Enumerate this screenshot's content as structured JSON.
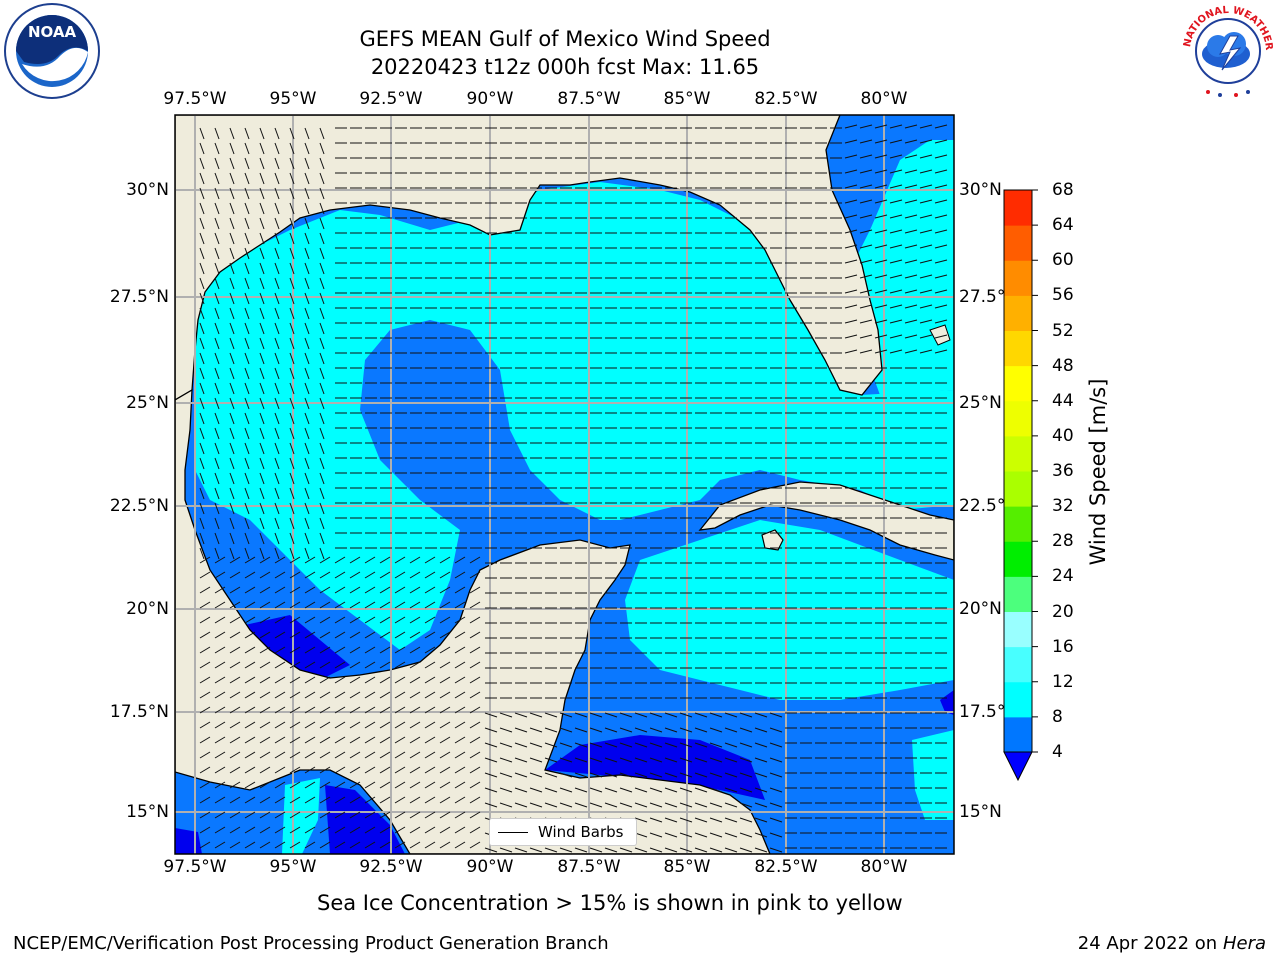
{
  "title": {
    "line1": "GEFS MEAN Gulf of Mexico Wind Speed",
    "line2": "20220423 t12z 000h fcst   Max: 11.65"
  },
  "map": {
    "lon_ticks": [
      "97.5°W",
      "95°W",
      "92.5°W",
      "90°W",
      "87.5°W",
      "85°W",
      "82.5°W",
      "80°W"
    ],
    "lon_values": [
      -97.5,
      -95,
      -92.5,
      -90,
      -87.5,
      -85,
      -82.5,
      -80
    ],
    "lat_ticks": [
      "30°N",
      "27.5°N",
      "25°N",
      "22.5°N",
      "20°N",
      "17.5°N",
      "15°N"
    ],
    "lat_values": [
      30,
      27.5,
      25,
      22.5,
      20,
      17.5,
      15
    ],
    "extent": {
      "lon_min": -98,
      "lon_max": -78,
      "lat_min": 14,
      "lat_max": 31.5
    },
    "legend_label": "Wind Barbs",
    "colors": {
      "land": "#efecdc",
      "ocean_4_8": "#0a78ff",
      "ocean_8_12": "#00ffff",
      "ocean_0_4": "#0000ee",
      "grid": "#b0b0b0"
    }
  },
  "colorbar": {
    "label": "Wind Speed [m/s]",
    "levels": [
      "4",
      "8",
      "12",
      "16",
      "20",
      "24",
      "28",
      "32",
      "36",
      "40",
      "44",
      "48",
      "52",
      "56",
      "60",
      "64",
      "68"
    ],
    "colors": [
      "#0077ff",
      "#00ffff",
      "#48ffff",
      "#99ffff",
      "#4cff7d",
      "#00ee00",
      "#55ee00",
      "#aaff00",
      "#ccff00",
      "#eeff00",
      "#ffff00",
      "#ffd700",
      "#ffb000",
      "#ff8c00",
      "#ff5d00",
      "#ff2c00"
    ],
    "extend_color": "#0000ff"
  },
  "footer": {
    "note": "Sea Ice Concentration > 15% is shown in pink to yellow",
    "left": "NCEP/EMC/Verification Post Processing Product Generation Branch",
    "date": "24 Apr 2022 on",
    "machine": "Hera"
  },
  "logos": {
    "noaa_icon": "noaa-logo-icon",
    "noaa_text": "NOAA",
    "nws_icon": "nws-logo-icon",
    "nws_text": "NATIONAL WEATHER SERVICE"
  }
}
